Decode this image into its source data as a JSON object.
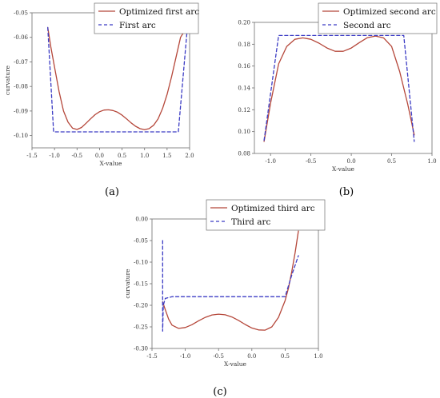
{
  "chart_data": [
    {
      "type": "line",
      "panel_label": "(a)",
      "xlabel": "X-value",
      "ylabel": "curvature",
      "xlim": [
        -1.5,
        2.0
      ],
      "ylim": [
        -0.105,
        -0.05
      ],
      "xticks": [
        "-1.5",
        "-1.0",
        "-0.5",
        "0.0",
        "0.5",
        "1.0",
        "1.5",
        "2.0"
      ],
      "yticks": [
        "-0.05",
        "-0.06",
        "-0.07",
        "-0.08",
        "-0.09",
        "-0.10"
      ],
      "legend_position": "top",
      "series": [
        {
          "name": "Optimized first arc",
          "style": "solid",
          "color": "#b5473a",
          "x": [
            -1.15,
            -1.08,
            -1.0,
            -0.9,
            -0.8,
            -0.7,
            -0.6,
            -0.5,
            -0.4,
            -0.3,
            -0.2,
            -0.1,
            0.0,
            0.1,
            0.2,
            0.3,
            0.4,
            0.5,
            0.6,
            0.7,
            0.8,
            0.9,
            1.0,
            1.1,
            1.2,
            1.3,
            1.4,
            1.5,
            1.6,
            1.7,
            1.8,
            1.9,
            1.95
          ],
          "y": [
            -0.056,
            -0.064,
            -0.072,
            -0.082,
            -0.09,
            -0.0945,
            -0.097,
            -0.0975,
            -0.0967,
            -0.095,
            -0.0932,
            -0.0915,
            -0.0903,
            -0.0896,
            -0.0895,
            -0.0898,
            -0.0905,
            -0.0917,
            -0.0932,
            -0.0948,
            -0.0962,
            -0.0972,
            -0.0976,
            -0.0972,
            -0.0958,
            -0.0932,
            -0.089,
            -0.0832,
            -0.076,
            -0.068,
            -0.06,
            -0.057,
            -0.056
          ]
        },
        {
          "name": "First arc",
          "style": "dashed",
          "color": "#3b3bc4",
          "x": [
            -1.15,
            -1.02,
            1.75,
            1.95
          ],
          "y": [
            -0.056,
            -0.0985,
            -0.0985,
            -0.056
          ]
        }
      ]
    },
    {
      "type": "line",
      "panel_label": "(b)",
      "xlabel": "X-value",
      "ylabel": "",
      "xlim": [
        -1.2,
        1.0
      ],
      "ylim": [
        0.08,
        0.2
      ],
      "xticks": [
        "-1.0",
        "-0.5",
        "0.0",
        "0.5",
        "1.0"
      ],
      "yticks": [
        "0.20",
        "0.18",
        "0.16",
        "0.14",
        "0.12",
        "0.10",
        "0.08"
      ],
      "legend_position": "top",
      "series": [
        {
          "name": "Optimized second arc",
          "style": "solid",
          "color": "#b5473a",
          "x": [
            -1.08,
            -1.0,
            -0.9,
            -0.8,
            -0.7,
            -0.6,
            -0.5,
            -0.4,
            -0.3,
            -0.2,
            -0.1,
            0.0,
            0.1,
            0.2,
            0.3,
            0.4,
            0.5,
            0.6,
            0.7,
            0.78
          ],
          "y": [
            0.091,
            0.126,
            0.162,
            0.178,
            0.1845,
            0.1858,
            0.1845,
            0.181,
            0.1765,
            0.1735,
            0.1735,
            0.1765,
            0.1815,
            0.186,
            0.1875,
            0.1858,
            0.178,
            0.155,
            0.125,
            0.097
          ]
        },
        {
          "name": "Second arc",
          "style": "dashed",
          "color": "#3b3bc4",
          "x": [
            -1.08,
            -0.9,
            0.65,
            0.78
          ],
          "y": [
            0.092,
            0.188,
            0.188,
            0.091
          ]
        }
      ]
    },
    {
      "type": "line",
      "panel_label": "(c)",
      "xlabel": "X-value",
      "ylabel": "curvature",
      "xlim": [
        -1.5,
        1.0
      ],
      "ylim": [
        -0.3,
        0.0
      ],
      "xticks": [
        "-1.5",
        "-1.0",
        "-0.5",
        "0.0",
        "0.5",
        "1.0"
      ],
      "yticks": [
        "0.00",
        "-0.05",
        "-0.10",
        "-0.15",
        "-0.20",
        "-0.25",
        "-0.30"
      ],
      "legend_position": "top",
      "series": [
        {
          "name": "Optimized third arc",
          "style": "solid",
          "color": "#b5473a",
          "x": [
            -1.34,
            -1.3,
            -1.25,
            -1.2,
            -1.1,
            -1.0,
            -0.9,
            -0.8,
            -0.7,
            -0.6,
            -0.5,
            -0.4,
            -0.3,
            -0.2,
            -0.1,
            0.0,
            0.1,
            0.2,
            0.3,
            0.4,
            0.5,
            0.55,
            0.6,
            0.65,
            0.7
          ],
          "y": [
            -0.192,
            -0.21,
            -0.232,
            -0.246,
            -0.2535,
            -0.2515,
            -0.245,
            -0.236,
            -0.228,
            -0.2225,
            -0.2205,
            -0.222,
            -0.227,
            -0.235,
            -0.2445,
            -0.2525,
            -0.257,
            -0.2575,
            -0.25,
            -0.228,
            -0.189,
            -0.16,
            -0.122,
            -0.078,
            -0.028
          ]
        },
        {
          "name": "Third arc",
          "style": "dashed",
          "color": "#3b3bc4",
          "x": [
            -1.34,
            -1.34,
            -1.33,
            -1.3,
            -1.2,
            -1.0,
            0.5,
            0.6,
            0.7
          ],
          "y": [
            -0.05,
            -0.26,
            -0.2,
            -0.184,
            -0.18,
            -0.18,
            -0.18,
            -0.13,
            -0.085
          ]
        }
      ]
    }
  ]
}
